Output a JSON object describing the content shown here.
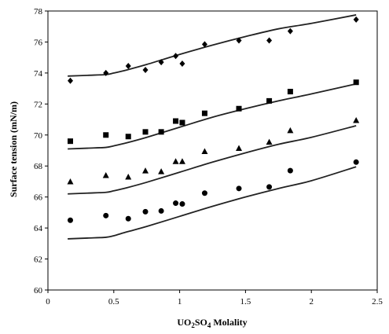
{
  "chart_data": {
    "type": "scatter",
    "xlabel": "UO2SO4 Molality",
    "xlabel_parts": {
      "pre": "UO",
      "sub1": "2",
      "mid": "SO",
      "sub2": "4",
      "post": " Molality"
    },
    "ylabel": "Surface tension (mN/m)",
    "xlim": [
      0,
      2.5
    ],
    "ylim": [
      60,
      78
    ],
    "xticks": [
      0,
      0.5,
      1,
      1.5,
      2,
      2.5
    ],
    "xtick_labels": [
      "0",
      "0.5",
      "1",
      "1.5",
      "2",
      "2.5"
    ],
    "yticks": [
      60,
      62,
      64,
      66,
      68,
      70,
      72,
      74,
      76,
      78
    ],
    "ytick_labels": [
      "60",
      "62",
      "64",
      "66",
      "68",
      "70",
      "72",
      "74",
      "76",
      "78"
    ],
    "grid": false,
    "legend": "none",
    "series": [
      {
        "marker": "diamond",
        "points": {
          "x": [
            0.17,
            0.44,
            0.61,
            0.74,
            0.86,
            0.97,
            1.02,
            1.19,
            1.45,
            1.68,
            1.84,
            2.34
          ],
          "y": [
            73.5,
            74.0,
            74.45,
            74.2,
            74.7,
            75.1,
            74.6,
            75.85,
            76.1,
            76.1,
            76.7,
            77.45
          ]
        },
        "curve": {
          "x": [
            0.15,
            0.3,
            0.44,
            0.5,
            0.6,
            0.75,
            1.0,
            1.25,
            1.5,
            1.75,
            2.0,
            2.34
          ],
          "y": [
            73.8,
            73.85,
            73.9,
            74.0,
            74.2,
            74.55,
            75.2,
            75.8,
            76.35,
            76.85,
            77.2,
            77.75
          ]
        }
      },
      {
        "marker": "square",
        "points": {
          "x": [
            0.17,
            0.44,
            0.61,
            0.74,
            0.86,
            0.97,
            1.02,
            1.19,
            1.45,
            1.68,
            1.84,
            2.34
          ],
          "y": [
            69.6,
            70.0,
            69.9,
            70.2,
            70.2,
            70.9,
            70.8,
            71.4,
            71.7,
            72.2,
            72.8,
            73.4
          ]
        },
        "curve": {
          "x": [
            0.15,
            0.3,
            0.44,
            0.5,
            0.6,
            0.75,
            1.0,
            1.25,
            1.5,
            1.75,
            2.0,
            2.34
          ],
          "y": [
            69.1,
            69.15,
            69.2,
            69.3,
            69.5,
            69.85,
            70.5,
            71.15,
            71.7,
            72.2,
            72.65,
            73.3
          ]
        }
      },
      {
        "marker": "triangle",
        "points": {
          "x": [
            0.17,
            0.44,
            0.61,
            0.74,
            0.86,
            0.97,
            1.02,
            1.19,
            1.45,
            1.68,
            1.84,
            2.34
          ],
          "y": [
            67.0,
            67.4,
            67.3,
            67.7,
            67.65,
            68.3,
            68.3,
            68.95,
            69.15,
            69.55,
            70.3,
            70.95
          ]
        },
        "curve": {
          "x": [
            0.15,
            0.3,
            0.44,
            0.5,
            0.6,
            0.75,
            1.0,
            1.25,
            1.5,
            1.75,
            2.0,
            2.34
          ],
          "y": [
            66.2,
            66.25,
            66.3,
            66.4,
            66.6,
            66.95,
            67.6,
            68.25,
            68.85,
            69.4,
            69.85,
            70.6
          ]
        }
      },
      {
        "marker": "circle",
        "points": {
          "x": [
            0.17,
            0.44,
            0.61,
            0.74,
            0.86,
            0.97,
            1.02,
            1.19,
            1.45,
            1.68,
            1.84,
            2.34
          ],
          "y": [
            64.5,
            64.8,
            64.6,
            65.05,
            65.1,
            65.6,
            65.55,
            66.25,
            66.55,
            66.65,
            67.7,
            68.25
          ]
        },
        "curve": {
          "x": [
            0.15,
            0.3,
            0.44,
            0.5,
            0.6,
            0.75,
            1.0,
            1.25,
            1.5,
            1.75,
            2.0,
            2.34
          ],
          "y": [
            63.3,
            63.35,
            63.4,
            63.5,
            63.75,
            64.1,
            64.75,
            65.4,
            66.0,
            66.55,
            67.05,
            67.95
          ]
        }
      }
    ]
  }
}
